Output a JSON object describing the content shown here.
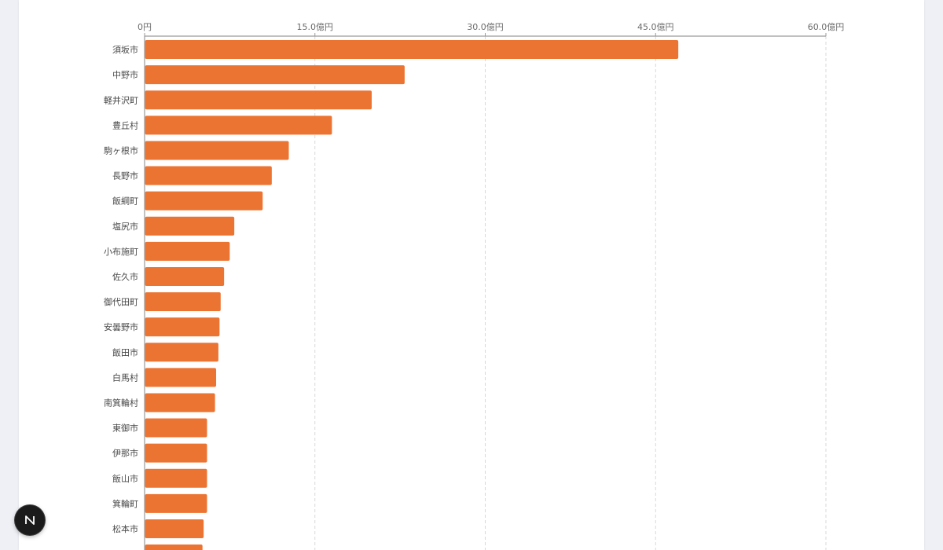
{
  "chart_data": {
    "type": "bar",
    "orientation": "horizontal",
    "categories": [
      "須坂市",
      "中野市",
      "軽井沢町",
      "豊丘村",
      "駒ヶ根市",
      "長野市",
      "飯綱町",
      "塩尻市",
      "小布施町",
      "佐久市",
      "御代田町",
      "安曇野市",
      "飯田市",
      "白馬村",
      "南箕輪村",
      "東御市",
      "伊那市",
      "飯山市",
      "箕輪町",
      "松本市",
      ""
    ],
    "values": [
      47.0,
      22.9,
      20.0,
      16.5,
      12.7,
      11.2,
      10.4,
      7.9,
      7.5,
      7.0,
      6.7,
      6.6,
      6.5,
      6.3,
      6.2,
      5.5,
      5.5,
      5.5,
      5.5,
      5.2,
      5.1
    ],
    "xlim": [
      0,
      60
    ],
    "ticks": [
      {
        "value": 0,
        "label": "0円"
      },
      {
        "value": 15,
        "label": "15.0億円"
      },
      {
        "value": 30,
        "label": "30.0億円"
      },
      {
        "value": 45,
        "label": "45.0億円"
      },
      {
        "value": 60,
        "label": "60.0億円"
      }
    ],
    "axis_position": "top",
    "grid": true,
    "bar_color": "#ec7433",
    "grid_color": "#d9d9d9",
    "axis_color": "#9a9a9a"
  },
  "badge": {
    "letter": "N"
  }
}
